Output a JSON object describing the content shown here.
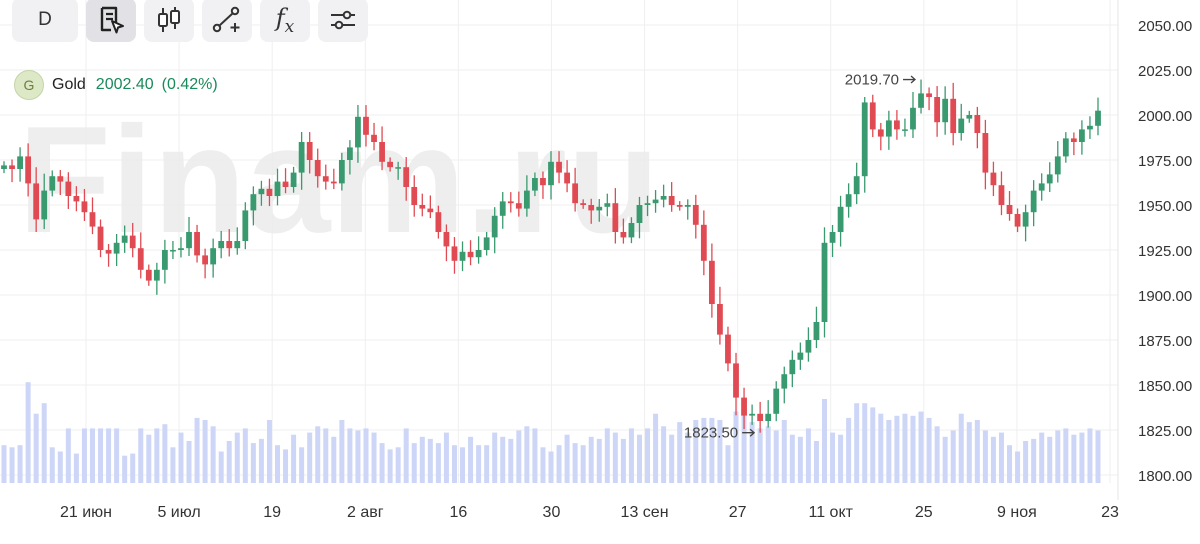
{
  "toolbar": {
    "period_label": "D",
    "items": [
      "period-selector",
      "indicators-icon",
      "candle-type-icon",
      "drawing-tools-icon",
      "fx-icon",
      "settings-sliders-icon"
    ]
  },
  "instrument": {
    "badge": "G",
    "name": "Gold",
    "price": "2002.40",
    "change": "(0.42%)"
  },
  "watermark": "Finam.ru",
  "colors": {
    "up": "#3a9a6f",
    "down": "#e04b53",
    "volume": "#cdd6f7",
    "grid": "#efefef",
    "text": "#333333",
    "positive_text": "#198a5a"
  },
  "chart_data": {
    "type": "candlestick",
    "ylim": [
      1795,
      2060
    ],
    "y_ticks": [
      "2050.00",
      "2025.00",
      "2000.00",
      "1975.00",
      "1950.00",
      "1925.00",
      "1900.00",
      "1875.00",
      "1850.00",
      "1825.00",
      "1800.00"
    ],
    "x_tick_labels": [
      "21 июн",
      "5 июл",
      "19",
      "2 авг",
      "16",
      "30",
      "13 сен",
      "27",
      "11 окт",
      "25",
      "9 ноя",
      "23"
    ],
    "annotations": [
      {
        "label": "2019.70",
        "value": 2019.7,
        "type": "high"
      },
      {
        "label": "1823.50",
        "value": 1823.5,
        "type": "low"
      }
    ],
    "last_close": 2002.4,
    "closes": [
      1972,
      1970,
      1977,
      1962,
      1942,
      1958,
      1966,
      1963,
      1955,
      1952,
      1946,
      1938,
      1925,
      1923,
      1929,
      1933,
      1926,
      1914,
      1908,
      1914,
      1925,
      1925,
      1926,
      1935,
      1922,
      1917,
      1926,
      1930,
      1926,
      1930,
      1947,
      1956,
      1959,
      1955,
      1963,
      1960,
      1968,
      1985,
      1975,
      1966,
      1963,
      1962,
      1975,
      1982,
      1999,
      1989,
      1985,
      1974,
      1971,
      1971,
      1960,
      1950,
      1948,
      1946,
      1935,
      1927,
      1919,
      1924,
      1921,
      1925,
      1932,
      1944,
      1952,
      1951,
      1948,
      1958,
      1965,
      1961,
      1974,
      1968,
      1962,
      1951,
      1950,
      1947,
      1949,
      1951,
      1935,
      1932,
      1940,
      1950,
      1951,
      1953,
      1955,
      1950,
      1949,
      1950,
      1939,
      1919,
      1895,
      1878,
      1862,
      1843,
      1833,
      1834,
      1830,
      1834,
      1848,
      1856,
      1864,
      1868,
      1875,
      1885,
      1929,
      1935,
      1949,
      1956,
      1966,
      2007,
      1992,
      1988,
      1997,
      1992,
      1992,
      2004,
      2012,
      2010,
      1996,
      2009,
      1990,
      1998,
      2000,
      1990,
      1968,
      1961,
      1950,
      1945,
      1938,
      1946,
      1958,
      1962,
      1967,
      1977,
      1987,
      1985,
      1992,
      1994,
      2002.4
    ],
    "volumes": [
      18,
      17,
      18,
      48,
      33,
      38,
      17,
      15,
      26,
      14,
      26,
      26,
      26,
      26,
      26,
      13,
      14,
      26,
      23,
      26,
      28,
      17,
      24,
      20,
      31,
      30,
      27,
      15,
      20,
      24,
      26,
      19,
      21,
      30,
      18,
      16,
      23,
      17,
      24,
      27,
      26,
      22,
      30,
      26,
      25,
      26,
      24,
      19,
      16,
      17,
      26,
      19,
      22,
      21,
      19,
      24,
      18,
      17,
      22,
      18,
      18,
      24,
      22,
      21,
      25,
      27,
      26,
      17,
      15,
      18,
      23,
      19,
      18,
      22,
      21,
      26,
      24,
      21,
      26,
      23,
      26,
      33,
      27,
      23,
      29,
      24,
      30,
      31,
      31,
      30,
      18,
      34,
      33,
      29,
      26,
      27,
      25,
      30,
      23,
      22,
      26,
      20,
      40,
      24,
      23,
      31,
      38,
      38,
      36,
      33,
      30,
      32,
      33,
      32,
      34,
      31,
      27,
      22,
      25,
      33,
      29,
      30,
      25,
      22,
      24,
      18,
      15,
      20,
      21,
      24,
      22,
      25,
      26,
      23,
      24,
      26,
      25
    ]
  }
}
